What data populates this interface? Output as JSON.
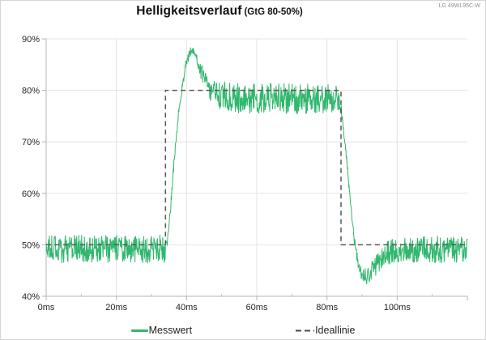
{
  "chart_data": {
    "type": "line",
    "title": "Helligkeitsverlauf",
    "subtitle": "(GtG 80-50%)",
    "model_label": "LG 49WL95C-W",
    "xlim": [
      0,
      120
    ],
    "ylim": [
      40,
      90
    ],
    "grid": true,
    "x_ticks": [
      {
        "value": 0,
        "label": "0ms"
      },
      {
        "value": 20,
        "label": "20ms"
      },
      {
        "value": 40,
        "label": "40ms"
      },
      {
        "value": 60,
        "label": "60ms"
      },
      {
        "value": 80,
        "label": "80ms"
      },
      {
        "value": 100,
        "label": "100ms"
      },
      {
        "value": 120,
        "label": ""
      }
    ],
    "x_minor_ticks": [
      10,
      30,
      50,
      70,
      90,
      110
    ],
    "y_ticks": [
      {
        "value": 40,
        "label": "40%"
      },
      {
        "value": 50,
        "label": "50%"
      },
      {
        "value": 60,
        "label": "60%"
      },
      {
        "value": 70,
        "label": "70%"
      },
      {
        "value": 80,
        "label": "80%"
      },
      {
        "value": 90,
        "label": "90%"
      }
    ],
    "colors": {
      "messwert": "#31b76d",
      "ideallinie": "#575757",
      "grid": "#e4e4e4",
      "axis": "#b5b5b5",
      "minor_tick": "#c4c4c4",
      "tick_label": "#262626"
    },
    "series": [
      {
        "name": "Messwert",
        "style": "noisy-line",
        "color_key": "messwert",
        "unit_x": "ms",
        "unit_y": "percent",
        "noise_seed": 20,
        "keypoints": [
          [
            0,
            49.2
          ],
          [
            34.0,
            49.2
          ],
          [
            34.6,
            51.0
          ],
          [
            35.4,
            57.0
          ],
          [
            36.2,
            64.0
          ],
          [
            37.0,
            70.5
          ],
          [
            37.8,
            76.0
          ],
          [
            38.6,
            80.0
          ],
          [
            39.4,
            83.5
          ],
          [
            40.2,
            85.8
          ],
          [
            41.0,
            87.3
          ],
          [
            41.7,
            87.9
          ],
          [
            42.4,
            87.3
          ],
          [
            43.2,
            85.8
          ],
          [
            44.2,
            83.6
          ],
          [
            45.2,
            81.9
          ],
          [
            46.2,
            80.6
          ],
          [
            47.5,
            79.6
          ],
          [
            49.0,
            79.0
          ],
          [
            51.0,
            78.7
          ],
          [
            55.0,
            78.5
          ],
          [
            62.0,
            78.4
          ],
          [
            70.0,
            78.4
          ],
          [
            78.0,
            78.4
          ],
          [
            83.2,
            78.4
          ],
          [
            84.0,
            76.5
          ],
          [
            84.8,
            72.0
          ],
          [
            85.6,
            66.5
          ],
          [
            86.4,
            60.5
          ],
          [
            87.2,
            54.5
          ],
          [
            88.0,
            49.8
          ],
          [
            88.8,
            46.6
          ],
          [
            89.6,
            44.9
          ],
          [
            90.4,
            44.1
          ],
          [
            91.3,
            43.9
          ],
          [
            92.2,
            44.4
          ],
          [
            93.2,
            45.3
          ],
          [
            94.4,
            46.4
          ],
          [
            95.7,
            47.4
          ],
          [
            97.2,
            48.3
          ],
          [
            98.7,
            48.8
          ],
          [
            100.5,
            49.0
          ],
          [
            104.0,
            49.1
          ],
          [
            112.0,
            49.1
          ],
          [
            120.0,
            49.1
          ]
        ],
        "noise_amplitude": [
          [
            0,
            2.8
          ],
          [
            33.6,
            2.8
          ],
          [
            34.6,
            0.9
          ],
          [
            40.0,
            1.1
          ],
          [
            42.5,
            1.3
          ],
          [
            45.0,
            1.8
          ],
          [
            48.0,
            2.4
          ],
          [
            52.0,
            3.0
          ],
          [
            80.0,
            3.0
          ],
          [
            83.0,
            2.4
          ],
          [
            84.6,
            0.8
          ],
          [
            87.5,
            1.0
          ],
          [
            89.5,
            1.5
          ],
          [
            92.0,
            1.8
          ],
          [
            95.0,
            2.2
          ],
          [
            99.0,
            2.6
          ],
          [
            120.0,
            2.7
          ]
        ]
      },
      {
        "name": "Ideallinie",
        "style": "dashed-line",
        "color_key": "ideallinie",
        "points": [
          [
            0,
            50
          ],
          [
            34,
            50
          ],
          [
            34,
            80
          ],
          [
            84,
            80
          ],
          [
            84,
            50
          ],
          [
            120,
            50
          ]
        ]
      }
    ],
    "legend": {
      "position": "bottom",
      "items": [
        {
          "label": "Messwert",
          "swatch": "solid-green-line"
        },
        {
          "label": "Ideallinie",
          "swatch": "dashed-gray-line"
        }
      ]
    }
  }
}
